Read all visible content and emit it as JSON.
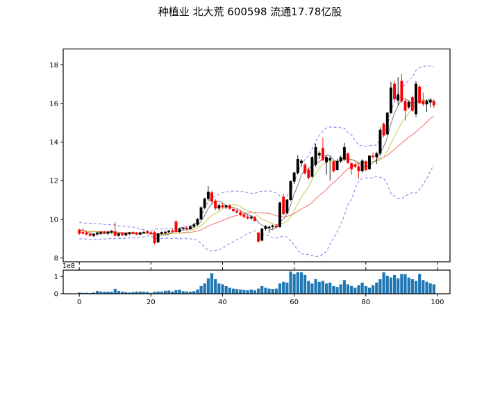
{
  "title": "种植业  北大荒  600598  流通17.78亿股",
  "figure": {
    "background": "#ffffff",
    "axes_edge_color": "#000000",
    "tick_label_color": "#000000"
  },
  "chart_data": [
    {
      "type": "candlestick",
      "title": "种植业  北大荒  600598  流通17.78亿股",
      "x_ticks": [
        0,
        20,
        40,
        60,
        80,
        100
      ],
      "y_ticks": [
        8,
        10,
        12,
        14,
        16,
        18
      ],
      "xlim": [
        -4.5,
        103.5
      ],
      "ylim": [
        7.8,
        18.82
      ],
      "grid": false,
      "up_color": "#000000",
      "down_color": "#ff0000",
      "overlays": [
        {
          "name": "ma5",
          "type": "sma",
          "window": 5,
          "color": "#7a7a7a",
          "style": "solid"
        },
        {
          "name": "ma10",
          "type": "sma",
          "window": 10,
          "color": "#c9c94a",
          "style": "solid"
        },
        {
          "name": "ma20",
          "type": "sma",
          "window": 20,
          "color": "#ef6f6f",
          "style": "solid"
        },
        {
          "name": "boll-upper",
          "type": "bollinger_upper",
          "window": 20,
          "k": 2,
          "color": "#7b7bf0",
          "style": "dashed"
        },
        {
          "name": "boll-lower",
          "type": "bollinger_lower",
          "window": 20,
          "k": 2,
          "color": "#7b7bf0",
          "style": "dashed"
        }
      ],
      "warmup_closes": [
        9.7,
        9.3,
        9.6,
        9.1,
        9.5,
        9.2,
        9.65,
        9.15,
        9.55,
        9.25,
        9.7,
        9.2,
        9.6,
        9.1,
        9.5,
        9.3,
        9.75,
        9.35,
        9.6
      ],
      "ohlc": [
        [
          9.45,
          9.52,
          9.2,
          9.26
        ],
        [
          9.33,
          9.56,
          9.22,
          9.27
        ],
        [
          9.3,
          9.38,
          9.18,
          9.22
        ],
        [
          9.24,
          9.3,
          9.1,
          9.15
        ],
        [
          9.15,
          9.28,
          9.08,
          9.24
        ],
        [
          9.24,
          9.35,
          9.15,
          9.3
        ],
        [
          9.28,
          9.38,
          9.2,
          9.34
        ],
        [
          9.34,
          9.4,
          9.24,
          9.27
        ],
        [
          9.27,
          9.42,
          9.18,
          9.34
        ],
        [
          9.34,
          9.44,
          9.26,
          9.4
        ],
        [
          9.36,
          9.85,
          9.1,
          9.16
        ],
        [
          9.16,
          9.3,
          9.1,
          9.25
        ],
        [
          9.27,
          9.33,
          9.14,
          9.18
        ],
        [
          9.18,
          9.31,
          9.12,
          9.27
        ],
        [
          9.27,
          9.35,
          9.2,
          9.31
        ],
        [
          9.33,
          9.39,
          9.24,
          9.28
        ],
        [
          9.28,
          9.35,
          9.18,
          9.22
        ],
        [
          9.22,
          9.35,
          9.17,
          9.31
        ],
        [
          9.31,
          9.4,
          9.24,
          9.34
        ],
        [
          9.37,
          9.43,
          9.26,
          9.3
        ],
        [
          9.32,
          9.38,
          9.2,
          9.24
        ],
        [
          9.32,
          9.4,
          8.7,
          8.78
        ],
        [
          8.82,
          9.3,
          8.76,
          9.26
        ],
        [
          9.26,
          9.37,
          9.2,
          9.33
        ],
        [
          9.3,
          9.43,
          9.21,
          9.34
        ],
        [
          9.34,
          9.45,
          9.28,
          9.41
        ],
        [
          9.42,
          9.5,
          9.31,
          9.37
        ],
        [
          9.88,
          9.96,
          9.3,
          9.36
        ],
        [
          9.36,
          9.56,
          9.31,
          9.51
        ],
        [
          9.51,
          9.62,
          9.42,
          9.56
        ],
        [
          9.56,
          9.63,
          9.45,
          9.5
        ],
        [
          9.5,
          9.66,
          9.46,
          9.63
        ],
        [
          9.63,
          9.82,
          9.56,
          9.73
        ],
        [
          9.73,
          10.06,
          9.66,
          10.01
        ],
        [
          10.01,
          10.66,
          9.96,
          10.61
        ],
        [
          10.61,
          11.12,
          10.52,
          11.06
        ],
        [
          11.06,
          11.72,
          10.96,
          11.42
        ],
        [
          11.38,
          11.48,
          10.82,
          10.92
        ],
        [
          10.96,
          11.06,
          10.47,
          10.57
        ],
        [
          10.57,
          10.82,
          10.47,
          10.72
        ],
        [
          10.72,
          10.82,
          10.56,
          10.63
        ],
        [
          10.63,
          10.77,
          10.52,
          10.71
        ],
        [
          10.71,
          10.79,
          10.49,
          10.56
        ],
        [
          10.52,
          10.62,
          10.36,
          10.43
        ],
        [
          10.43,
          10.54,
          10.29,
          10.36
        ],
        [
          10.36,
          10.46,
          10.16,
          10.23
        ],
        [
          10.23,
          10.33,
          10.06,
          10.13
        ],
        [
          10.13,
          10.23,
          9.99,
          10.06
        ],
        [
          10.06,
          10.19,
          9.96,
          10.13
        ],
        [
          10.11,
          10.16,
          9.89,
          9.93
        ],
        [
          9.3,
          9.36,
          8.78,
          8.86
        ],
        [
          8.91,
          9.56,
          8.86,
          9.51
        ],
        [
          9.51,
          9.71,
          9.41,
          9.63
        ],
        [
          9.58,
          9.67,
          9.29,
          9.61
        ],
        [
          9.61,
          9.73,
          9.51,
          9.67
        ],
        [
          9.67,
          9.75,
          9.53,
          9.59
        ],
        [
          9.61,
          10.92,
          9.56,
          10.86
        ],
        [
          11.16,
          11.32,
          10.21,
          10.29
        ],
        [
          10.32,
          11.06,
          10.27,
          11.01
        ],
        [
          11.01,
          12.02,
          10.96,
          11.96
        ],
        [
          11.96,
          12.47,
          11.82,
          12.41
        ],
        [
          12.41,
          13.32,
          12.31,
          13.11
        ],
        [
          12.92,
          13.12,
          12.72,
          13.02
        ],
        [
          12.82,
          12.92,
          12.31,
          12.39
        ],
        [
          12.56,
          12.66,
          12.06,
          12.16
        ],
        [
          12.21,
          13.27,
          12.16,
          13.21
        ],
        [
          12.82,
          13.92,
          12.72,
          13.73
        ],
        [
          13.32,
          13.52,
          13.12,
          13.43
        ],
        [
          13.69,
          14.22,
          13.01,
          13.07
        ],
        [
          12.96,
          13.31,
          12.31,
          13.21
        ],
        [
          13.06,
          13.27,
          12.01,
          13.16
        ],
        [
          12.99,
          13.06,
          12.41,
          12.51
        ],
        [
          12.56,
          13.12,
          12.51,
          13.01
        ],
        [
          13.01,
          13.31,
          12.91,
          13.21
        ],
        [
          13.11,
          13.96,
          13.01,
          13.73
        ],
        [
          13.41,
          13.46,
          12.86,
          12.93
        ],
        [
          12.89,
          12.96,
          12.31,
          12.61
        ],
        [
          12.83,
          12.93,
          12.66,
          12.73
        ],
        [
          12.73,
          12.86,
          12.11,
          12.51
        ],
        [
          12.51,
          13.11,
          12.41,
          13.03
        ],
        [
          12.99,
          13.06,
          12.49,
          12.56
        ],
        [
          12.61,
          13.33,
          12.56,
          13.29
        ],
        [
          13.29,
          13.46,
          13.11,
          13.23
        ],
        [
          13.23,
          13.49,
          12.86,
          13.41
        ],
        [
          13.41,
          14.76,
          13.31,
          14.63
        ],
        [
          14.93,
          15.01,
          14.26,
          14.35
        ],
        [
          14.41,
          15.56,
          14.36,
          15.51
        ],
        [
          15.51,
          17.12,
          15.46,
          16.81
        ],
        [
          17.01,
          17.16,
          16.12,
          16.23
        ],
        [
          16.16,
          17.36,
          15.91,
          16.46
        ],
        [
          17.16,
          17.52,
          16.02,
          16.12
        ],
        [
          16.12,
          16.22,
          15.12,
          15.63
        ],
        [
          15.81,
          16.16,
          15.71,
          16.06
        ],
        [
          16.31,
          16.41,
          15.56,
          15.63
        ],
        [
          15.46,
          17.16,
          15.31,
          17.01
        ],
        [
          16.86,
          16.96,
          15.96,
          16.03
        ],
        [
          16.11,
          16.56,
          15.86,
          15.96
        ],
        [
          15.96,
          16.21,
          15.56,
          16.11
        ],
        [
          16.06,
          16.26,
          15.81,
          16.16
        ],
        [
          16.11,
          16.21,
          15.76,
          15.91
        ]
      ]
    },
    {
      "type": "bar",
      "name": "volume",
      "unit_label": "1e8",
      "y_ticks": [
        0,
        1
      ],
      "ylim": [
        0,
        1.38
      ],
      "x_ticks": [
        0,
        20,
        40,
        60,
        80,
        100
      ],
      "bar_color": "#1f77b4",
      "values": [
        0.07,
        0.05,
        0.06,
        0.04,
        0.07,
        0.16,
        0.13,
        0.12,
        0.12,
        0.12,
        0.29,
        0.16,
        0.13,
        0.1,
        0.07,
        0.1,
        0.13,
        0.13,
        0.12,
        0.11,
        0.05,
        0.12,
        0.13,
        0.13,
        0.17,
        0.19,
        0.13,
        0.21,
        0.24,
        0.15,
        0.13,
        0.12,
        0.15,
        0.25,
        0.45,
        0.6,
        0.9,
        1.2,
        0.85,
        0.6,
        0.55,
        0.45,
        0.35,
        0.3,
        0.28,
        0.25,
        0.22,
        0.2,
        0.25,
        0.2,
        0.3,
        0.45,
        0.35,
        0.3,
        0.28,
        0.3,
        0.6,
        0.7,
        0.65,
        1.3,
        1.15,
        1.25,
        1.25,
        1.1,
        0.75,
        0.6,
        0.85,
        0.7,
        0.75,
        0.6,
        0.65,
        0.45,
        0.4,
        0.55,
        0.8,
        0.55,
        0.45,
        0.35,
        0.5,
        0.65,
        0.45,
        0.35,
        0.5,
        0.65,
        0.85,
        1.25,
        1.05,
        0.95,
        1.1,
        0.9,
        1.15,
        1.15,
        0.95,
        0.85,
        0.75,
        1.15,
        0.8,
        0.7,
        0.6,
        0.55
      ]
    }
  ]
}
